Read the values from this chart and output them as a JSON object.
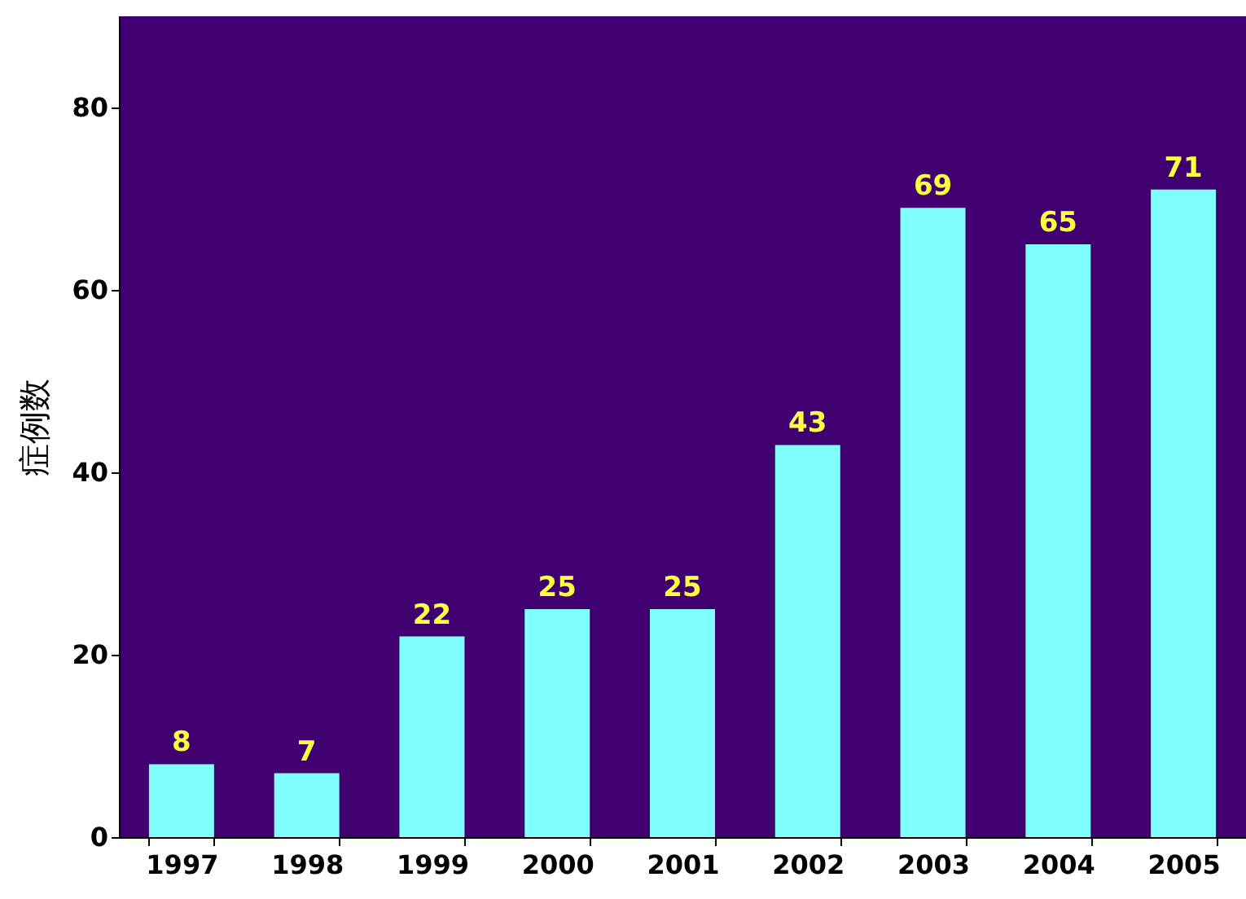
{
  "chart_data": {
    "type": "bar",
    "ylabel": "症例数",
    "categories": [
      "1997",
      "1998",
      "1999",
      "2000",
      "2001",
      "2002",
      "2003",
      "2004",
      "2005"
    ],
    "values": [
      8,
      7,
      22,
      25,
      25,
      43,
      69,
      65,
      71
    ],
    "color": "#80ffff",
    "ylim": [
      0,
      90
    ],
    "yticks": [
      0,
      20,
      40,
      60,
      80
    ],
    "grid": false,
    "data_labels": true
  }
}
